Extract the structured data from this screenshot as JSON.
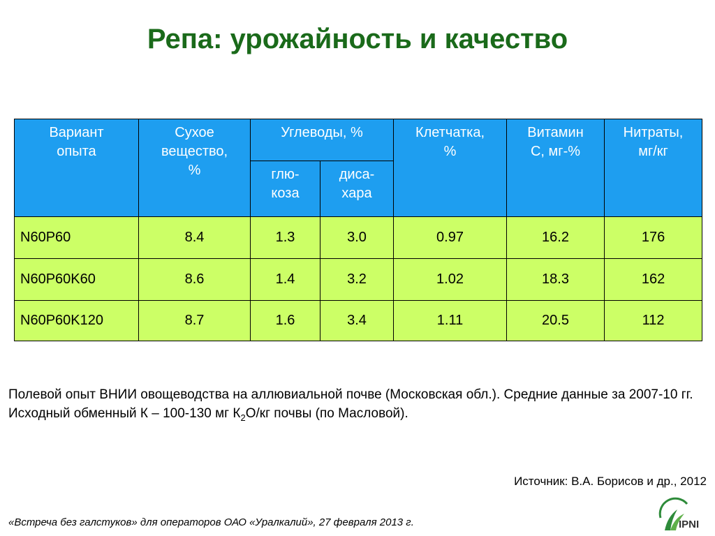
{
  "title": "Репа: урожайность и качество",
  "table": {
    "header": [
      "Вариант\nопыта",
      "Сухое\nвещество,\n%",
      "Углеводы, %",
      "Клетчатка,\n%",
      "Витамин\nС, мг-%",
      "Нитраты,\nмг/кг"
    ],
    "subheader": [
      "глю-\nкоза",
      "диса-\nхара"
    ],
    "rows": [
      [
        "N60P60",
        "8.4",
        "1.3",
        "3.0",
        "0.97",
        "16.2",
        "176"
      ],
      [
        "N60P60K60",
        "8.6",
        "1.4",
        "3.2",
        "1.02",
        "18.3",
        "162"
      ],
      [
        "N60P60K120",
        "8.7",
        "1.6",
        "3.4",
        "1.11",
        "20.5",
        "112"
      ]
    ]
  },
  "note": [
    "Полевой опыт ВНИИ овощеводства на аллювиальной почве (Московская обл.). Средние данные за 2007-10 гг. Исходный обменный К – 100-130 мг К",
    "2",
    "О/кг почвы (по Масловой)."
  ],
  "source": "Источник: В.А. Борисов и др., 2012",
  "footer": "«Встреча без галстуков» для операторов ОАО «Уралкалий», 27 февраля 2013 г.",
  "logo": "IPNI"
}
